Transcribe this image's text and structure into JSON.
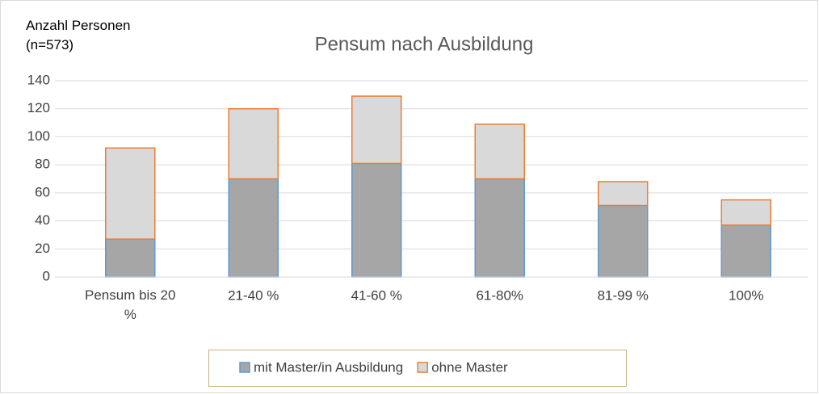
{
  "chart_data": {
    "type": "stacked_bar",
    "title": "Pensum nach Ausbildung",
    "y_label": "Anzahl Personen (n=573)",
    "categories": [
      "Pensum bis 20 %",
      "21-40 %",
      "41-60 %",
      "61-80%",
      "81-99 %",
      "100%"
    ],
    "series": [
      {
        "name": "mit Master/in Ausbildung",
        "color": "#a6a6a6",
        "edge": "#5b9bd5",
        "values": [
          27,
          70,
          81,
          70,
          51,
          37
        ]
      },
      {
        "name": "ohne Master",
        "color": "#d9d9d9",
        "edge": "#ed7d31",
        "values": [
          65,
          50,
          48,
          39,
          17,
          18
        ]
      }
    ],
    "ylim": [
      0,
      140
    ],
    "yticks": [
      0,
      20,
      40,
      60,
      80,
      100,
      120,
      140
    ],
    "grid": true,
    "legend": "bottom"
  }
}
